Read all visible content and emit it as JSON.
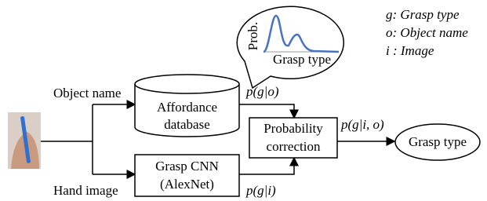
{
  "legend": [
    "g: Grasp type",
    "o: Object name",
    "i : Image"
  ],
  "bubble": {
    "y_label": "Prob.",
    "x_label": "Grasp type"
  },
  "inputs": {
    "object": "Object name",
    "hand": "Hand image"
  },
  "nodes": [
    {
      "label": [
        "Affordance",
        "database"
      ]
    },
    {
      "label": [
        "Grasp CNN",
        "(AlexNet)"
      ]
    },
    {
      "label": [
        "Probability",
        "correction"
      ]
    },
    {
      "label": [
        "Grasp type"
      ]
    }
  ],
  "edges": [
    "p(g|o)",
    "p(g|i)",
    "p(g|i, o)"
  ]
}
